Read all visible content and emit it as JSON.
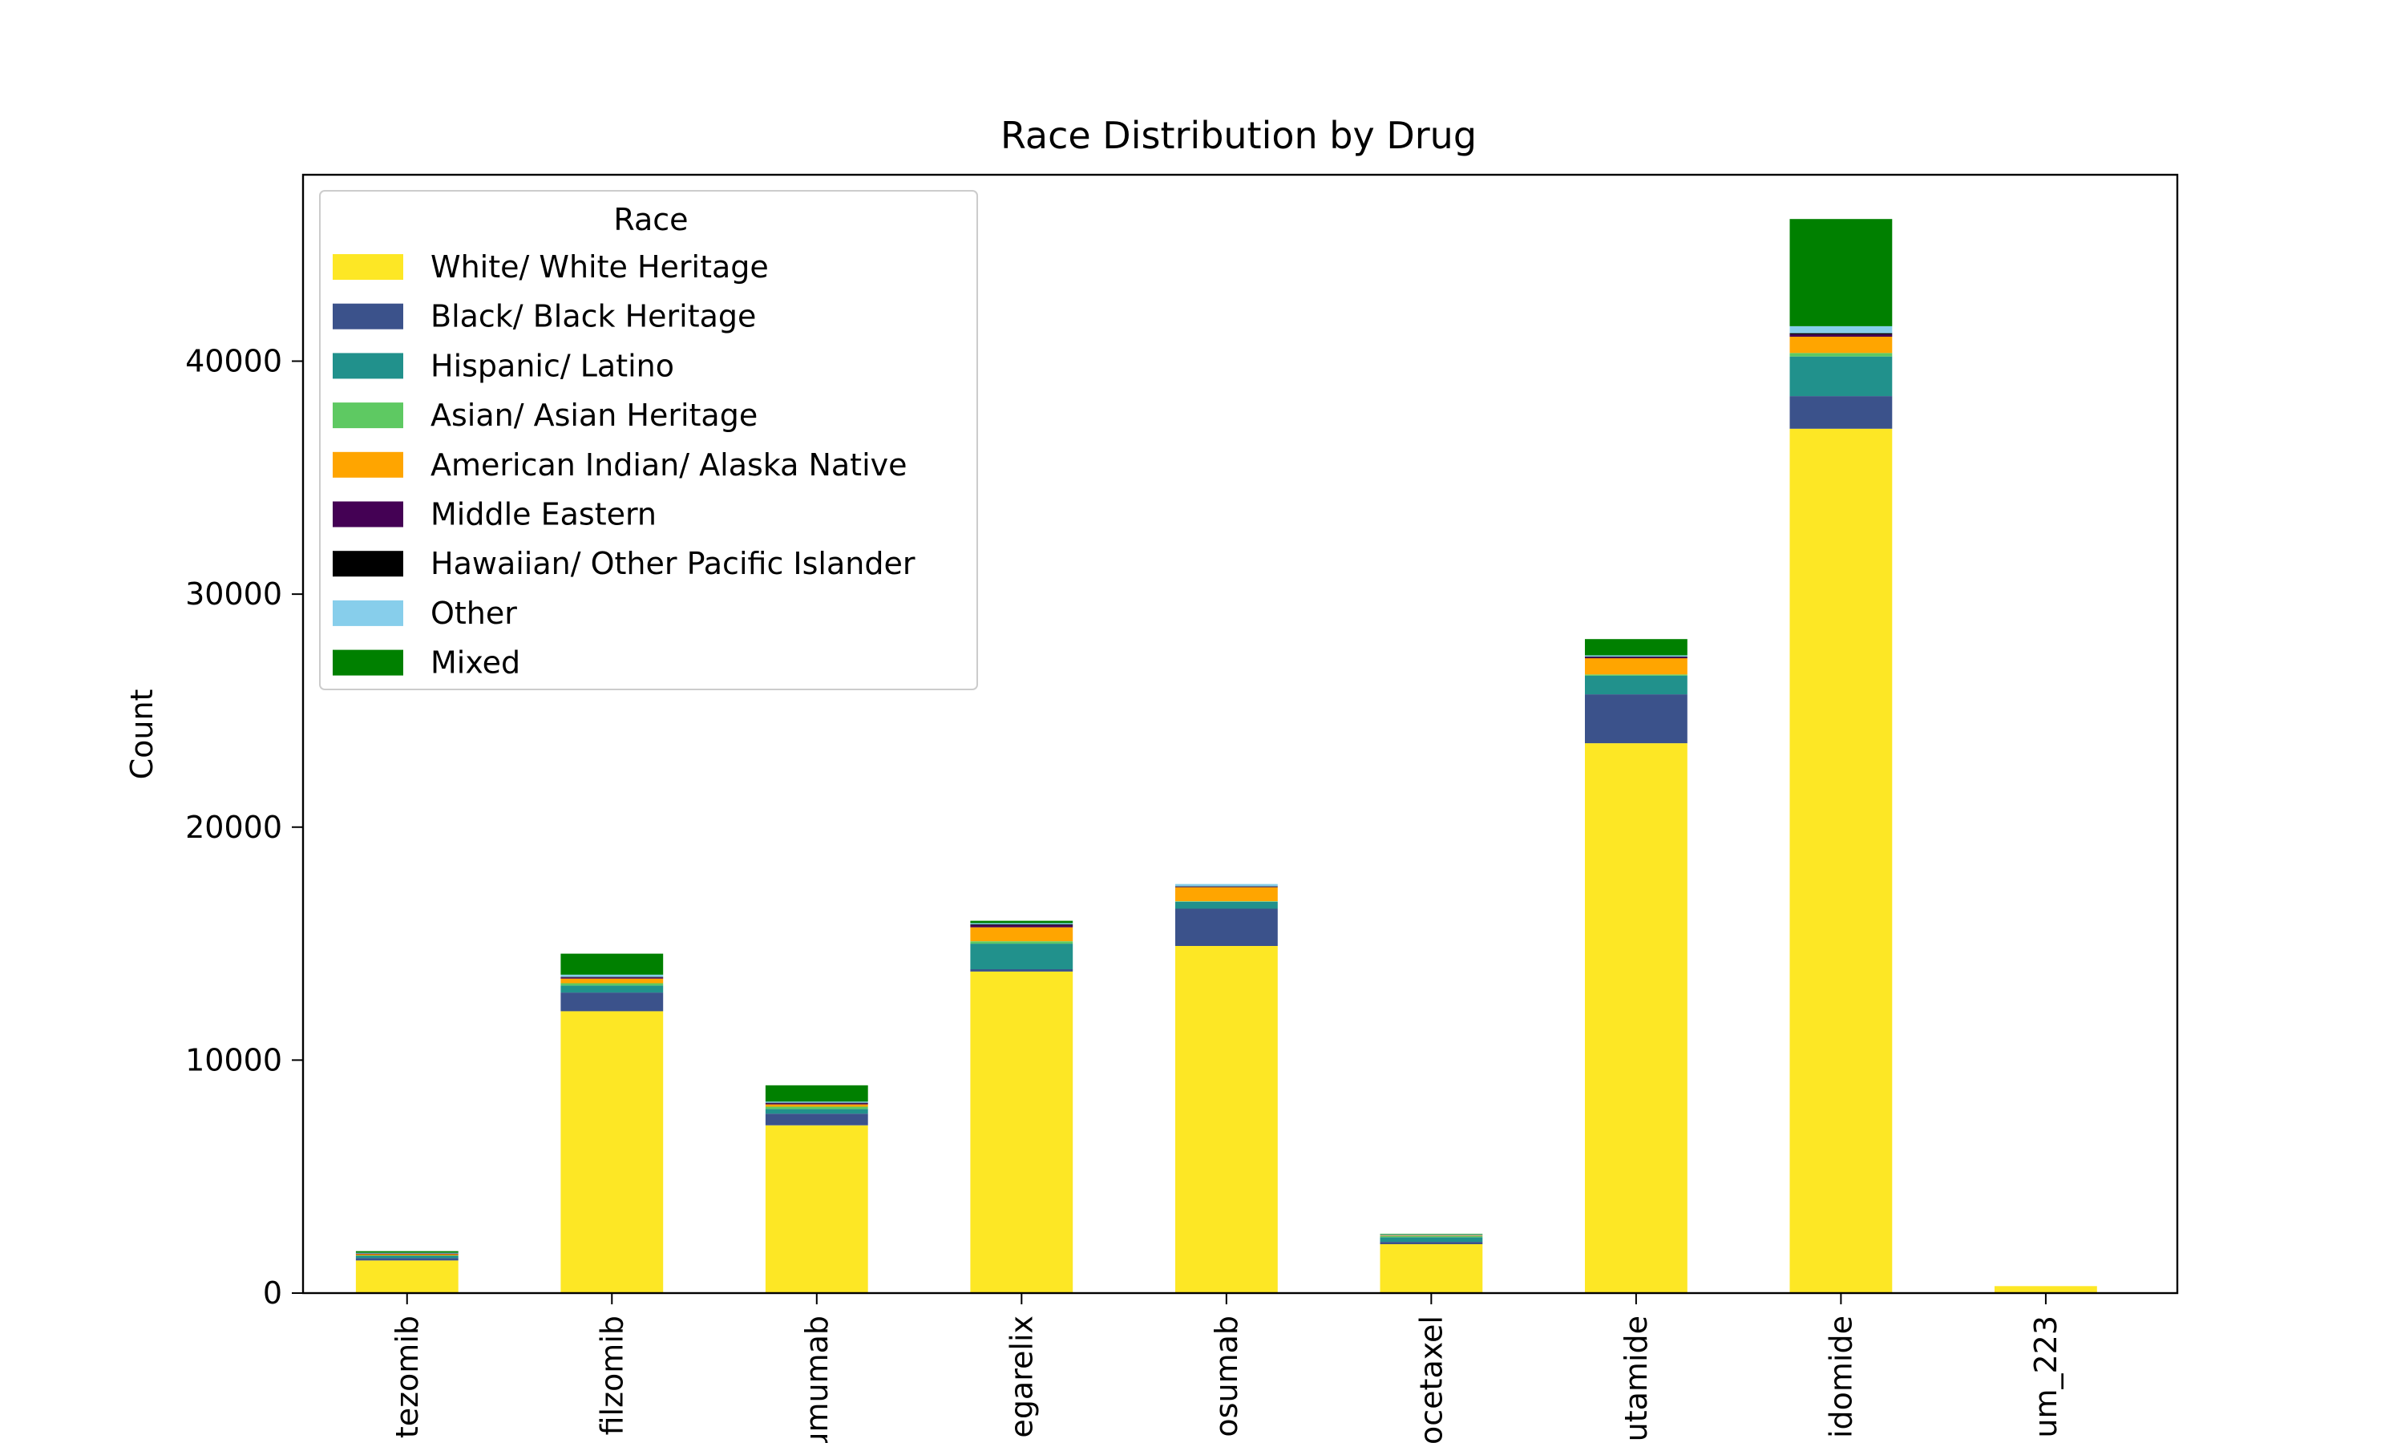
{
  "chart_data": {
    "type": "bar",
    "stacked": true,
    "title": "Race Distribution by Drug",
    "xlabel": "",
    "ylabel": "Count",
    "ylim": [
      0,
      48000
    ],
    "yticks": [
      0,
      10000,
      20000,
      30000,
      40000
    ],
    "ytick_labels": [
      "0",
      "10000",
      "20000",
      "30000",
      "40000"
    ],
    "grid": false,
    "legend": {
      "title": "Race",
      "placement": "top-left"
    },
    "categories": [
      "tezomib",
      "filzomib",
      "umumab",
      "egarelix",
      "osumab",
      "ocetaxel",
      "utamide",
      "idomide",
      "um_223"
    ],
    "series": [
      {
        "name": "White/ White Heritage",
        "color": "#fde725",
        "values": [
          1400,
          12100,
          7200,
          13800,
          14900,
          2100,
          23600,
          37100,
          300
        ]
      },
      {
        "name": "Black/ Black Heritage",
        "color": "#3b528b",
        "values": [
          100,
          800,
          500,
          100,
          1600,
          100,
          2100,
          1400,
          0
        ]
      },
      {
        "name": "Hispanic/ Latino",
        "color": "#21918c",
        "values": [
          100,
          300,
          200,
          1100,
          300,
          200,
          800,
          1700,
          0
        ]
      },
      {
        "name": "Asian/ Asian Heritage",
        "color": "#5ec962",
        "values": [
          20,
          100,
          100,
          100,
          20,
          50,
          50,
          150,
          0
        ]
      },
      {
        "name": "American Indian/ Alaska Native",
        "color": "#ffa500",
        "values": [
          50,
          200,
          100,
          600,
          600,
          20,
          700,
          700,
          0
        ]
      },
      {
        "name": "Middle Eastern",
        "color": "#440154",
        "values": [
          20,
          50,
          50,
          100,
          20,
          10,
          50,
          100,
          0
        ]
      },
      {
        "name": "Hawaiian/ Other Pacific Islander",
        "color": "#000000",
        "values": [
          10,
          20,
          20,
          30,
          20,
          5,
          20,
          50,
          0
        ]
      },
      {
        "name": "Other",
        "color": "#87ceeb",
        "values": [
          30,
          100,
          50,
          50,
          100,
          20,
          50,
          300,
          0
        ]
      },
      {
        "name": "Mixed",
        "color": "#008000",
        "values": [
          70,
          900,
          700,
          100,
          0,
          30,
          700,
          4600,
          0
        ]
      }
    ]
  }
}
